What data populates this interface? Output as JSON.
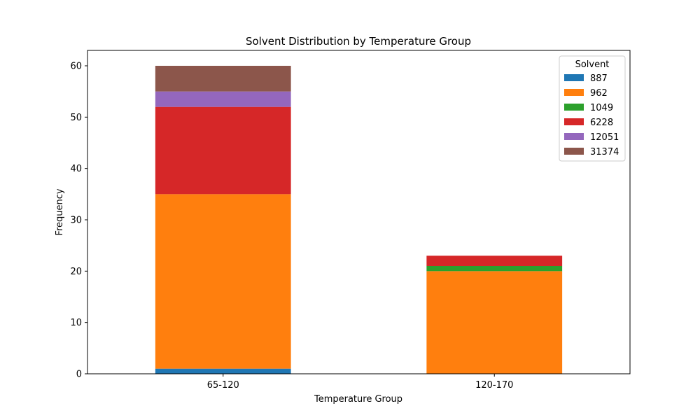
{
  "chart_data": {
    "type": "bar",
    "stacked": true,
    "title": "Solvent Distribution by Temperature Group",
    "xlabel": "Temperature Group",
    "ylabel": "Frequency",
    "categories": [
      "65-120",
      "120-170"
    ],
    "ylim": [
      0,
      63
    ],
    "yticks": [
      0,
      10,
      20,
      30,
      40,
      50,
      60
    ],
    "grid": false,
    "legend": {
      "title": "Solvent",
      "placement": "top-right"
    },
    "series": [
      {
        "name": "887",
        "color": "#1f77b4",
        "values": [
          1,
          0
        ]
      },
      {
        "name": "962",
        "color": "#ff7f0e",
        "values": [
          34,
          20
        ]
      },
      {
        "name": "1049",
        "color": "#2ca02c",
        "values": [
          0,
          1
        ]
      },
      {
        "name": "6228",
        "color": "#d62728",
        "values": [
          17,
          2
        ]
      },
      {
        "name": "12051",
        "color": "#9467bd",
        "values": [
          3,
          0
        ]
      },
      {
        "name": "31374",
        "color": "#8c564b",
        "values": [
          5,
          0
        ]
      }
    ]
  }
}
